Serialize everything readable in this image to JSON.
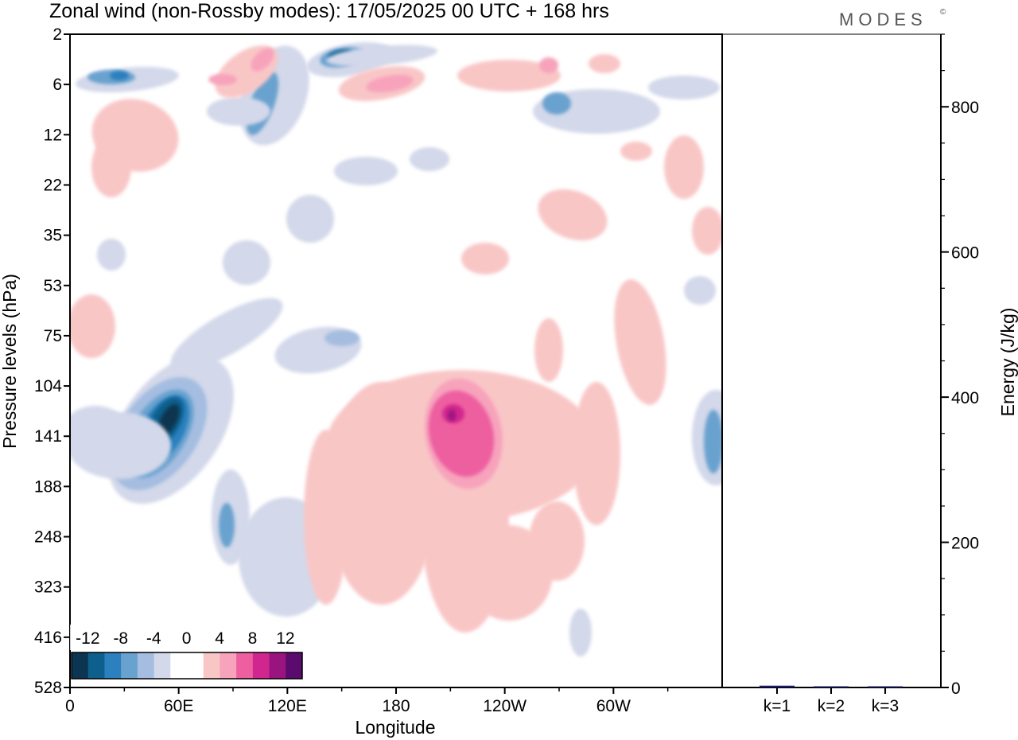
{
  "title": "Zonal wind (non-Rossby modes):  17/05/2025  00 UTC  + 168 hrs",
  "brand": "MODES",
  "brand_mark": "©",
  "colors": {
    "neg": [
      "#0b3550",
      "#0e5f8c",
      "#2c80bd",
      "#6aa2cf",
      "#a4bde0",
      "#d3d8ea"
    ],
    "zero": "#ffffff",
    "pos": [
      "#f9c6c6",
      "#f7a3bc",
      "#ee5fa0",
      "#d0268e",
      "#9a1480",
      "#5b0b6d"
    ],
    "energy_bar": "#1a1a66"
  },
  "chart_data": [
    {
      "type": "heatmap",
      "title": "Zonal wind (non-Rossby modes):  17/05/2025  00 UTC  + 168 hrs",
      "xlabel": "Longitude",
      "ylabel": "Pressure levels (hPa)",
      "x_ticks": [
        "0",
        "60E",
        "120E",
        "180",
        "120W",
        "60W"
      ],
      "x_tick_degrees": [
        0,
        60,
        120,
        180,
        240,
        300
      ],
      "xlim": [
        0,
        360
      ],
      "y_ticks": [
        "2",
        "6",
        "12",
        "22",
        "35",
        "53",
        "75",
        "104",
        "141",
        "188",
        "248",
        "323",
        "416",
        "528"
      ],
      "y_scale": "pressure levels, top to bottom",
      "colorbar_labels": [
        "-12",
        "-8",
        "-4",
        "0",
        "4",
        "8",
        "12"
      ],
      "colorbar_levels": [
        -12,
        -10,
        -8,
        -6,
        -4,
        -2,
        0,
        2,
        4,
        6,
        8,
        10,
        12
      ],
      "features": [
        {
          "lon": 50,
          "level_index": 8,
          "value": -13,
          "label": "strong easterly core"
        },
        {
          "lon": 203,
          "level_index": 8,
          "value": 9,
          "label": "westerly maximum"
        },
        {
          "lon": 148,
          "level_index": 0.5,
          "value": -11,
          "label": "upper easterly jet"
        },
        {
          "lon": 355,
          "level_index": 8.2,
          "value": -6,
          "label": "easterly patch"
        }
      ],
      "grid": false
    },
    {
      "type": "bar",
      "ylabel": "Energy (J/kg)",
      "categories": [
        "k=1",
        "k=2",
        "k=3"
      ],
      "values": [
        2.5,
        1.2,
        0.6
      ],
      "ylim": [
        0,
        900
      ],
      "y_ticks": [
        "0",
        "200",
        "400",
        "600",
        "800"
      ]
    }
  ]
}
